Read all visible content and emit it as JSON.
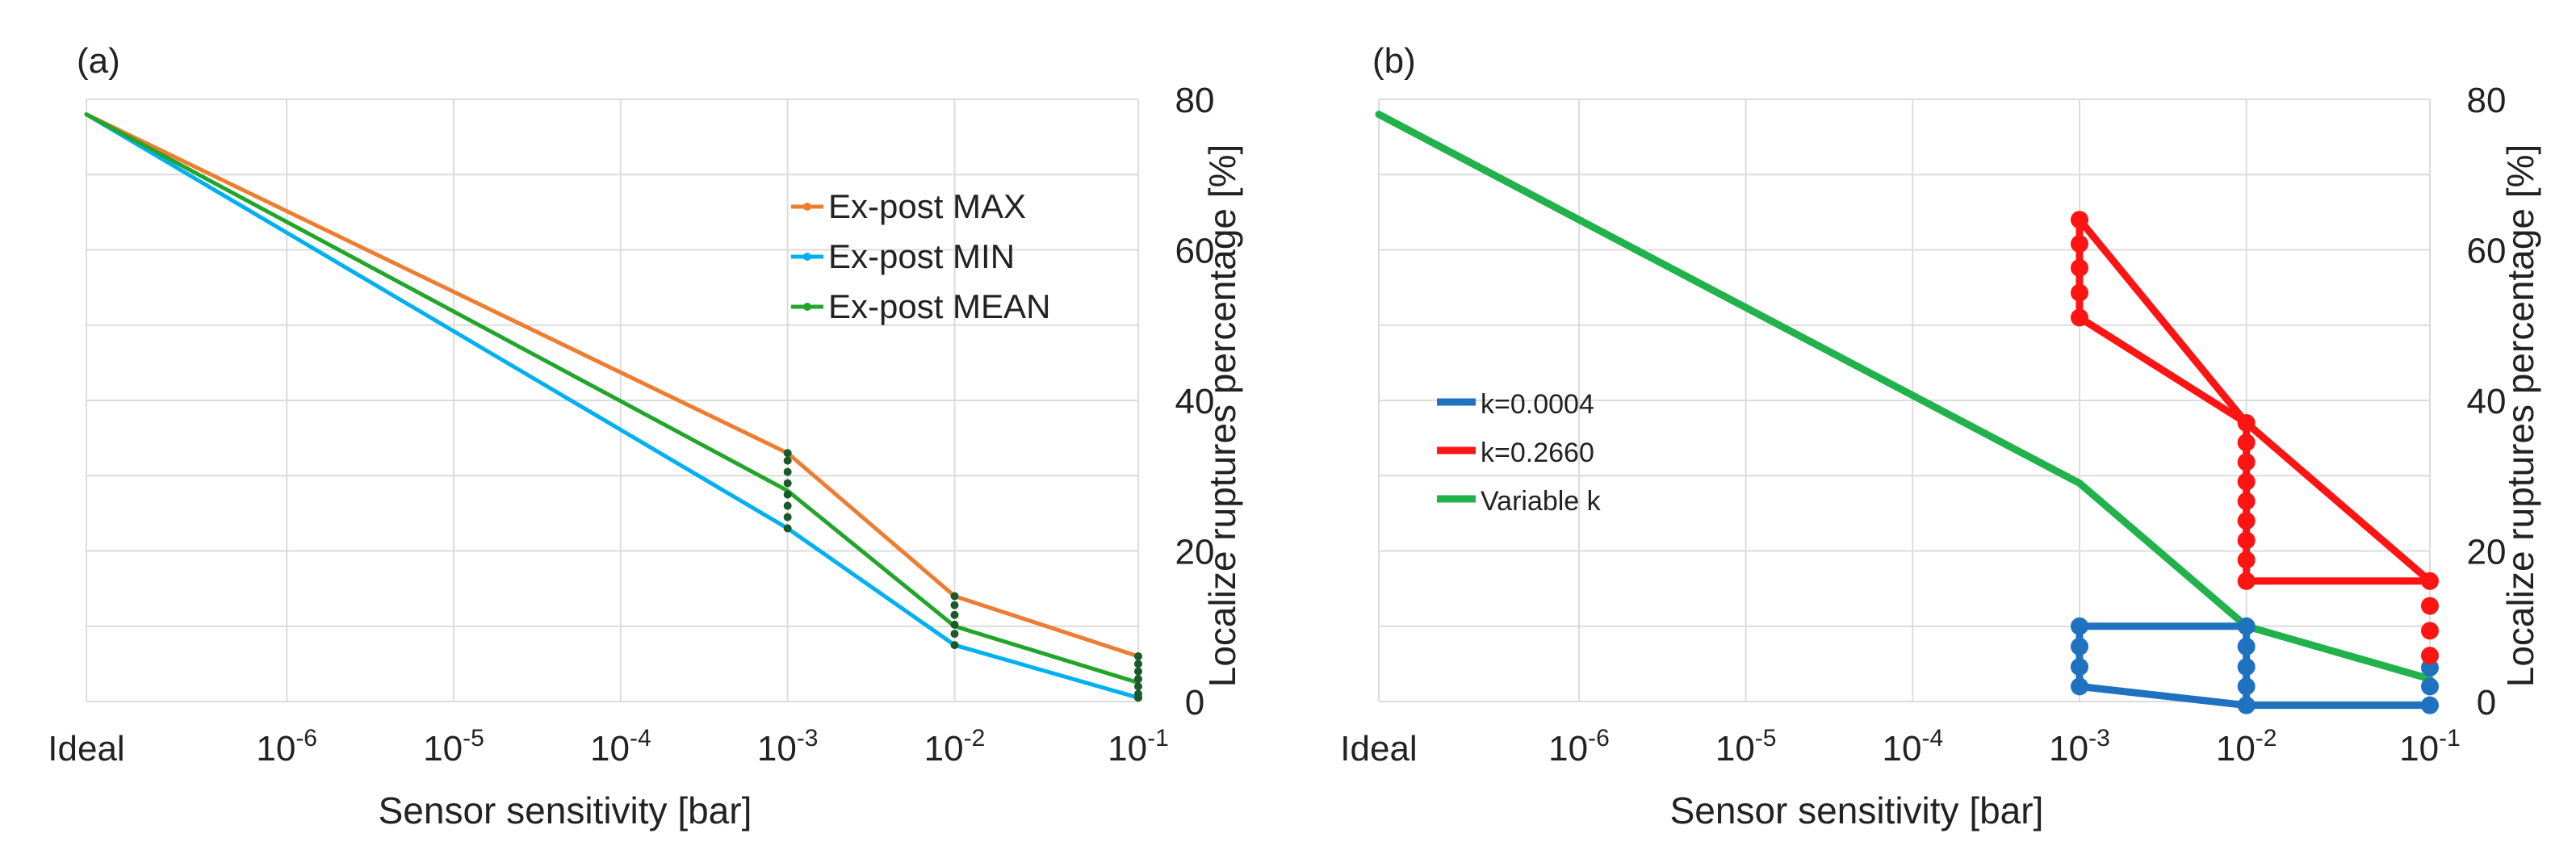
{
  "chart_data": [
    {
      "panel_label": "(a)",
      "type": "line",
      "x_scale": "log10",
      "categories": [
        "Ideal",
        "10-6",
        "10-5",
        "10-4",
        "10-3",
        "10-2",
        "10-1"
      ],
      "x_tick_labels": [
        {
          "base": "Ideal",
          "exp": ""
        },
        {
          "base": "10",
          "exp": "-6"
        },
        {
          "base": "10",
          "exp": "-5"
        },
        {
          "base": "10",
          "exp": "-4"
        },
        {
          "base": "10",
          "exp": "-3"
        },
        {
          "base": "10",
          "exp": "-2"
        },
        {
          "base": "10",
          "exp": "-1"
        }
      ],
      "y_ticks": [
        "0",
        "20",
        "40",
        "60",
        "80"
      ],
      "xlabel": "Sensor sensitivity [bar]",
      "ylabel": "Localize ruptures percentage [%]",
      "ylim": [
        0,
        80
      ],
      "legend_position": "top-right",
      "series": [
        {
          "name": "Ex-post MAX",
          "color": "#ed7d31",
          "x": [
            -7.2,
            -3,
            -2,
            -0.9
          ],
          "y": [
            78,
            33,
            14,
            6
          ]
        },
        {
          "name": "Ex-post MIN",
          "color": "#00b0f0",
          "x": [
            -7.2,
            -3,
            -2,
            -0.9
          ],
          "y": [
            78,
            23,
            7.5,
            0.5
          ]
        },
        {
          "name": "Ex-post MEAN",
          "color": "#22a52b",
          "x": [
            -7.2,
            -3,
            -2,
            -0.9
          ],
          "y": [
            78,
            28,
            10,
            2.5
          ]
        }
      ],
      "markers": {
        "color": "#1a5a2a",
        "points": [
          {
            "x": -3,
            "y": 33
          },
          {
            "x": -3,
            "y": 32
          },
          {
            "x": -3,
            "y": 30.5
          },
          {
            "x": -3,
            "y": 29
          },
          {
            "x": -3,
            "y": 27.5
          },
          {
            "x": -3,
            "y": 26
          },
          {
            "x": -3,
            "y": 24.5
          },
          {
            "x": -3,
            "y": 23
          },
          {
            "x": -2,
            "y": 14
          },
          {
            "x": -2,
            "y": 12.8
          },
          {
            "x": -2,
            "y": 11.5
          },
          {
            "x": -2,
            "y": 10.2
          },
          {
            "x": -2,
            "y": 9
          },
          {
            "x": -2,
            "y": 7.5
          },
          {
            "x": -0.9,
            "y": 6
          },
          {
            "x": -0.9,
            "y": 5
          },
          {
            "x": -0.9,
            "y": 4
          },
          {
            "x": -0.9,
            "y": 3
          },
          {
            "x": -0.9,
            "y": 2
          },
          {
            "x": -0.9,
            "y": 1
          },
          {
            "x": -0.9,
            "y": 0.5
          }
        ]
      }
    },
    {
      "panel_label": "(b)",
      "type": "line",
      "x_scale": "log10",
      "categories": [
        "Ideal",
        "10-6",
        "10-5",
        "10-4",
        "10-3",
        "10-2",
        "10-1"
      ],
      "x_tick_labels": [
        {
          "base": "Ideal",
          "exp": ""
        },
        {
          "base": "10",
          "exp": "-6"
        },
        {
          "base": "10",
          "exp": "-5"
        },
        {
          "base": "10",
          "exp": "-4"
        },
        {
          "base": "10",
          "exp": "-3"
        },
        {
          "base": "10",
          "exp": "-2"
        },
        {
          "base": "10",
          "exp": "-1"
        }
      ],
      "y_ticks": [
        "0",
        "20",
        "40",
        "60",
        "80"
      ],
      "xlabel": "Sensor sensitivity [bar]",
      "ylabel": "Localize ruptures percentage [%]",
      "ylim": [
        0,
        80
      ],
      "legend_position": "center-left",
      "series": [
        {
          "name": "k=0.0004",
          "color": "#1f72c0",
          "x": [
            -3,
            -3,
            -2,
            -0.9,
            -2,
            -2,
            -3
          ],
          "y": [
            10,
            2,
            -0.5,
            -0.5,
            -0.5,
            10,
            10
          ]
        },
        {
          "name": "k=0.2660",
          "color": "#ff1414",
          "x": [
            -3,
            -3,
            -2,
            -0.9,
            -2,
            -2,
            -3
          ],
          "y": [
            51,
            64,
            37,
            16,
            16,
            37,
            51
          ]
        },
        {
          "name": "Variable k",
          "color": "#22b24c",
          "x": [
            -7.2,
            -3,
            -2,
            -0.9
          ],
          "y": [
            78,
            29,
            10,
            3
          ]
        }
      ],
      "markers": {
        "groups": [
          {
            "color": "#1f72c0",
            "points": [
              {
                "x": -3,
                "y": 10
              },
              {
                "x": -3,
                "y": 7.3
              },
              {
                "x": -3,
                "y": 4.6
              },
              {
                "x": -3,
                "y": 2
              },
              {
                "x": -2,
                "y": 10
              },
              {
                "x": -2,
                "y": 7.3
              },
              {
                "x": -2,
                "y": 4.6
              },
              {
                "x": -2,
                "y": 2
              },
              {
                "x": -2,
                "y": -0.5
              },
              {
                "x": -0.9,
                "y": 4.5
              },
              {
                "x": -0.9,
                "y": 2
              },
              {
                "x": -0.9,
                "y": -0.5
              }
            ]
          },
          {
            "color": "#ff1414",
            "points": [
              {
                "x": -3,
                "y": 64
              },
              {
                "x": -3,
                "y": 60.8
              },
              {
                "x": -3,
                "y": 57.6
              },
              {
                "x": -3,
                "y": 54.3
              },
              {
                "x": -3,
                "y": 51
              },
              {
                "x": -2,
                "y": 37
              },
              {
                "x": -2,
                "y": 34.4
              },
              {
                "x": -2,
                "y": 31.8
              },
              {
                "x": -2,
                "y": 29.2
              },
              {
                "x": -2,
                "y": 26.6
              },
              {
                "x": -2,
                "y": 24
              },
              {
                "x": -2,
                "y": 21.4
              },
              {
                "x": -2,
                "y": 18.8
              },
              {
                "x": -2,
                "y": 16
              },
              {
                "x": -0.9,
                "y": 16
              },
              {
                "x": -0.9,
                "y": 12.7
              },
              {
                "x": -0.9,
                "y": 9.4
              },
              {
                "x": -0.9,
                "y": 6.1
              }
            ]
          }
        ]
      }
    }
  ]
}
